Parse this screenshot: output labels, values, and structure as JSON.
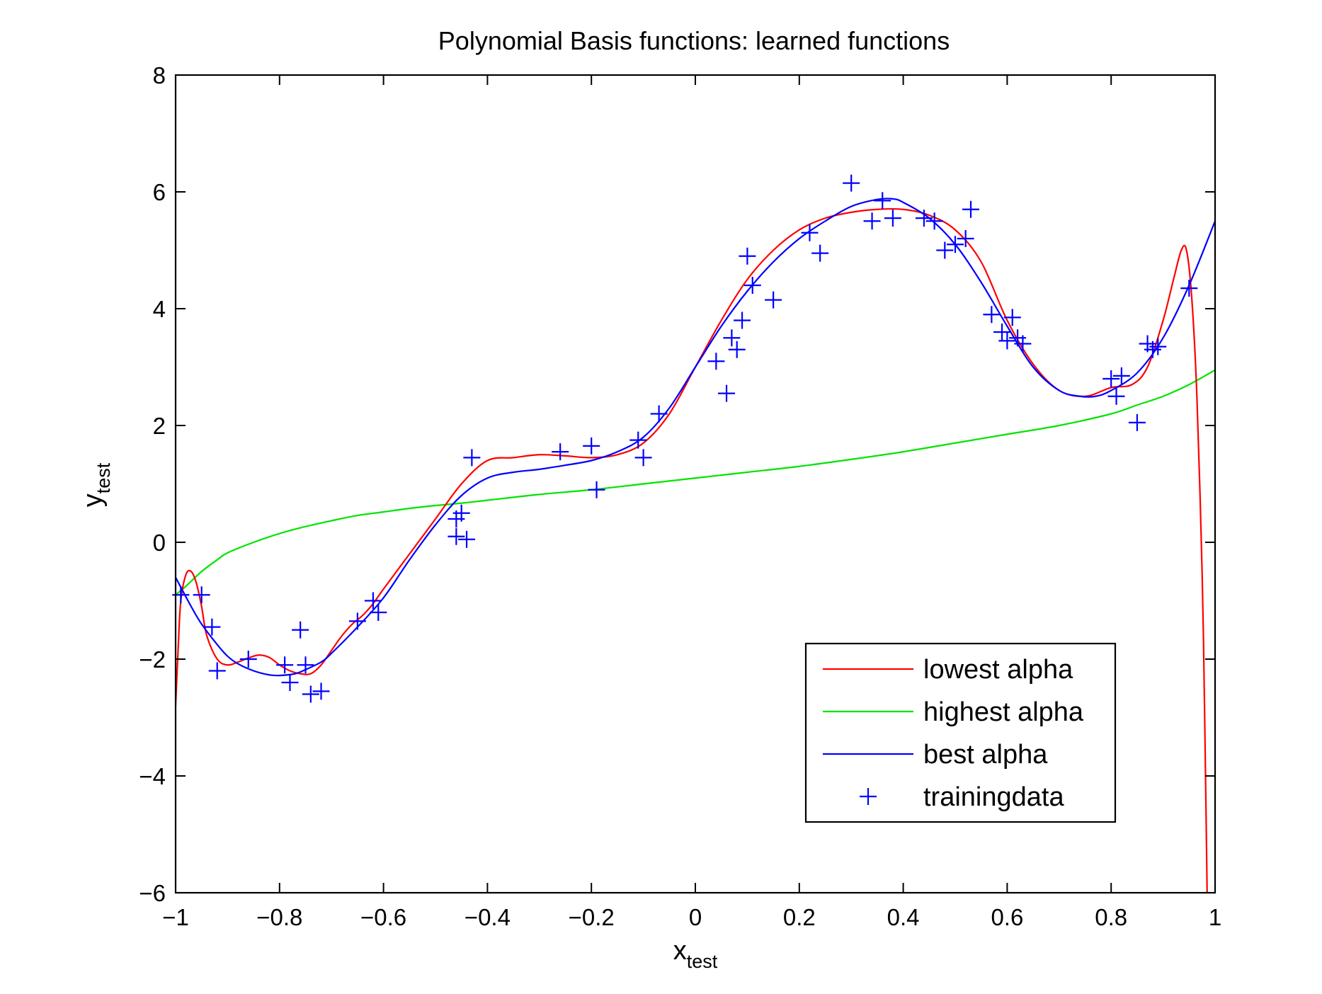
{
  "chart_data": {
    "type": "line",
    "title": "Polynomial Basis functions: learned functions",
    "xlabel": "x",
    "xlabel_sub": "test",
    "ylabel": "y",
    "ylabel_sub": "test",
    "xlim": [
      -1,
      1
    ],
    "ylim": [
      -6,
      8
    ],
    "xticks": [
      -1,
      -0.8,
      -0.6,
      -0.4,
      -0.2,
      0,
      0.2,
      0.4,
      0.6,
      0.8,
      1
    ],
    "xtick_labels": [
      "−1",
      "−0.8",
      "−0.6",
      "−0.4",
      "−0.2",
      "0",
      "0.2",
      "0.4",
      "0.6",
      "0.8",
      "1"
    ],
    "yticks": [
      -6,
      -4,
      -2,
      0,
      2,
      4,
      6,
      8
    ],
    "ytick_labels": [
      "−6",
      "−4",
      "−2",
      "0",
      "2",
      "4",
      "6",
      "8"
    ],
    "grid": false,
    "legend_position": "bottom-right",
    "series": [
      {
        "name": "lowest alpha",
        "color": "#ff0000",
        "marker": "line",
        "x": [
          -1.0,
          -0.995,
          -0.99,
          -0.98,
          -0.97,
          -0.96,
          -0.95,
          -0.94,
          -0.92,
          -0.9,
          -0.88,
          -0.86,
          -0.84,
          -0.82,
          -0.8,
          -0.78,
          -0.76,
          -0.74,
          -0.72,
          -0.7,
          -0.68,
          -0.66,
          -0.64,
          -0.62,
          -0.6,
          -0.55,
          -0.5,
          -0.45,
          -0.4,
          -0.35,
          -0.3,
          -0.25,
          -0.2,
          -0.15,
          -0.1,
          -0.05,
          0.0,
          0.05,
          0.1,
          0.15,
          0.2,
          0.25,
          0.3,
          0.35,
          0.4,
          0.45,
          0.5,
          0.55,
          0.6,
          0.65,
          0.7,
          0.75,
          0.8,
          0.84,
          0.87,
          0.9,
          0.92,
          0.935,
          0.945,
          0.955,
          0.965,
          0.975,
          0.98,
          0.985
        ],
        "y": [
          -2.8,
          -1.8,
          -1.0,
          -0.55,
          -0.5,
          -0.7,
          -1.1,
          -1.6,
          -2.0,
          -2.1,
          -2.05,
          -1.98,
          -1.93,
          -1.97,
          -2.1,
          -2.2,
          -2.25,
          -2.25,
          -2.1,
          -1.85,
          -1.6,
          -1.4,
          -1.25,
          -1.05,
          -0.8,
          -0.2,
          0.4,
          1.0,
          1.4,
          1.45,
          1.5,
          1.48,
          1.45,
          1.5,
          1.7,
          2.2,
          3.0,
          3.8,
          4.5,
          5.0,
          5.35,
          5.55,
          5.65,
          5.7,
          5.7,
          5.6,
          5.35,
          4.8,
          3.8,
          3.05,
          2.6,
          2.5,
          2.65,
          2.7,
          3.0,
          3.8,
          4.5,
          5.0,
          5.0,
          4.2,
          2.5,
          -0.5,
          -3.0,
          -6.2
        ]
      },
      {
        "name": "highest alpha",
        "color": "#00e400",
        "marker": "line",
        "x": [
          -1.0,
          -0.98,
          -0.95,
          -0.92,
          -0.9,
          -0.85,
          -0.8,
          -0.75,
          -0.7,
          -0.65,
          -0.6,
          -0.55,
          -0.5,
          -0.45,
          -0.4,
          -0.3,
          -0.2,
          -0.1,
          0.0,
          0.1,
          0.2,
          0.3,
          0.4,
          0.5,
          0.6,
          0.7,
          0.8,
          0.85,
          0.9,
          0.95,
          1.0
        ],
        "y": [
          -0.9,
          -0.75,
          -0.5,
          -0.3,
          -0.18,
          0.0,
          0.15,
          0.27,
          0.37,
          0.46,
          0.52,
          0.58,
          0.63,
          0.67,
          0.72,
          0.82,
          0.9,
          1.0,
          1.1,
          1.2,
          1.3,
          1.42,
          1.55,
          1.7,
          1.85,
          2.0,
          2.2,
          2.35,
          2.5,
          2.7,
          2.95
        ]
      },
      {
        "name": "best alpha",
        "color": "#0000ff",
        "marker": "line",
        "x": [
          -1.0,
          -0.97,
          -0.95,
          -0.92,
          -0.9,
          -0.88,
          -0.85,
          -0.82,
          -0.8,
          -0.77,
          -0.75,
          -0.72,
          -0.7,
          -0.65,
          -0.6,
          -0.55,
          -0.5,
          -0.45,
          -0.4,
          -0.35,
          -0.3,
          -0.25,
          -0.2,
          -0.15,
          -0.1,
          -0.05,
          0.0,
          0.05,
          0.1,
          0.15,
          0.2,
          0.25,
          0.3,
          0.35,
          0.38,
          0.4,
          0.45,
          0.5,
          0.55,
          0.6,
          0.65,
          0.7,
          0.74,
          0.77,
          0.8,
          0.85,
          0.9,
          0.95,
          1.0
        ],
        "y": [
          -0.6,
          -1.1,
          -1.4,
          -1.75,
          -1.95,
          -2.08,
          -2.2,
          -2.27,
          -2.28,
          -2.25,
          -2.18,
          -2.05,
          -1.9,
          -1.45,
          -0.95,
          -0.3,
          0.3,
          0.8,
          1.1,
          1.2,
          1.25,
          1.32,
          1.4,
          1.55,
          1.8,
          2.3,
          3.0,
          3.7,
          4.3,
          4.8,
          5.2,
          5.5,
          5.75,
          5.87,
          5.88,
          5.82,
          5.55,
          5.1,
          4.45,
          3.7,
          3.0,
          2.6,
          2.5,
          2.5,
          2.6,
          2.9,
          3.5,
          4.4,
          5.5
        ]
      },
      {
        "name": "trainingdata",
        "color": "#0000ff",
        "marker": "+",
        "x": [
          -0.99,
          -0.95,
          -0.93,
          -0.92,
          -0.86,
          -0.79,
          -0.78,
          -0.76,
          -0.75,
          -0.74,
          -0.72,
          -0.65,
          -0.62,
          -0.61,
          -0.46,
          -0.46,
          -0.45,
          -0.44,
          -0.43,
          -0.26,
          -0.2,
          -0.19,
          -0.11,
          -0.1,
          -0.07,
          0.04,
          0.06,
          0.07,
          0.08,
          0.09,
          0.1,
          0.11,
          0.15,
          0.22,
          0.24,
          0.3,
          0.34,
          0.36,
          0.38,
          0.44,
          0.46,
          0.48,
          0.5,
          0.52,
          0.53,
          0.57,
          0.59,
          0.6,
          0.61,
          0.62,
          0.63,
          0.8,
          0.81,
          0.82,
          0.85,
          0.87,
          0.88,
          0.89,
          0.95
        ],
        "y": [
          -0.9,
          -0.9,
          -1.45,
          -2.2,
          -2.0,
          -2.1,
          -2.4,
          -1.5,
          -2.1,
          -2.6,
          -2.55,
          -1.35,
          -1.0,
          -1.2,
          0.4,
          0.1,
          0.5,
          0.05,
          1.45,
          1.55,
          1.65,
          0.9,
          1.75,
          1.45,
          2.2,
          3.1,
          2.55,
          3.5,
          3.3,
          3.8,
          4.9,
          4.4,
          4.15,
          5.3,
          4.95,
          6.15,
          5.5,
          5.85,
          5.55,
          5.55,
          5.5,
          5.0,
          5.1,
          5.2,
          5.7,
          3.9,
          3.6,
          3.45,
          3.85,
          3.5,
          3.4,
          2.8,
          2.5,
          2.85,
          2.05,
          3.4,
          3.3,
          3.35,
          4.35
        ]
      }
    ]
  }
}
